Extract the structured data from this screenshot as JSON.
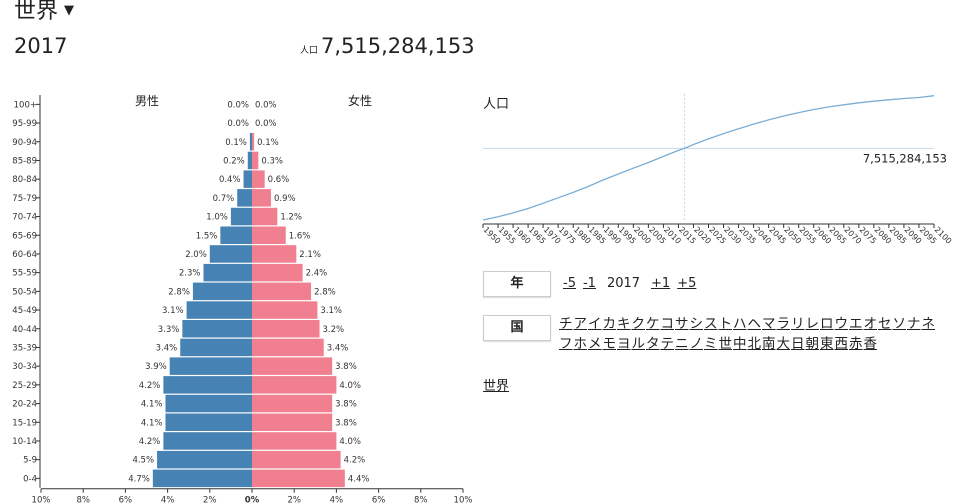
{
  "header": {
    "title": "世界",
    "year": "2017",
    "population_prefix": "人口",
    "population": "7,515,284,153"
  },
  "controls": {
    "year_label": "年",
    "country_label": "国",
    "steps": [
      "-5",
      "-1",
      "+1",
      "+5"
    ],
    "current_year": "2017",
    "world_link": "世界",
    "countries": [
      "チ",
      "ア",
      "イ",
      "カ",
      "キ",
      "ク",
      "ケ",
      "コ",
      "サ",
      "シ",
      "ス",
      "ト",
      "ハ",
      "ヘ",
      "マ",
      "ラ",
      "リ",
      "レ",
      "ロ",
      "ウ",
      "エ",
      "オ",
      "セ",
      "ソ",
      "ナ",
      "ネ",
      "フ",
      "ホ",
      "メ",
      "モ",
      "ヨ",
      "ル",
      "タ",
      "テ",
      "ニ",
      "ノ",
      "ミ",
      "世",
      "中",
      "北",
      "南",
      "大",
      "日",
      "朝",
      "東",
      "西",
      "赤",
      "香"
    ]
  },
  "colors": {
    "male": "#4682b4",
    "female": "#f08090",
    "line": "#7aaed6",
    "grid": "#c8d8e8"
  },
  "chart_data": [
    {
      "type": "bar",
      "orientation": "horizontal-diverging",
      "title": "",
      "left_label": "男性",
      "right_label": "女性",
      "categories": [
        "100+",
        "95-99",
        "90-94",
        "85-89",
        "80-84",
        "75-79",
        "70-74",
        "65-69",
        "60-64",
        "55-59",
        "50-54",
        "45-49",
        "40-44",
        "35-39",
        "30-34",
        "25-29",
        "20-24",
        "15-19",
        "10-14",
        "5-9",
        "0-4"
      ],
      "series": [
        {
          "name": "男性",
          "values": [
            0.0,
            0.0,
            0.1,
            0.2,
            0.4,
            0.7,
            1.0,
            1.5,
            2.0,
            2.3,
            2.8,
            3.1,
            3.3,
            3.4,
            3.9,
            4.2,
            4.1,
            4.1,
            4.2,
            4.5,
            4.7
          ]
        },
        {
          "name": "女性",
          "values": [
            0.0,
            0.0,
            0.1,
            0.3,
            0.6,
            0.9,
            1.2,
            1.6,
            2.1,
            2.4,
            2.8,
            3.1,
            3.2,
            3.4,
            3.8,
            4.0,
            3.8,
            3.8,
            4.0,
            4.2,
            4.4
          ]
        }
      ],
      "xlim": [
        -10,
        10
      ],
      "x_ticks": [
        "10%",
        "8%",
        "6%",
        "4%",
        "2%",
        "0%",
        "2%",
        "4%",
        "6%",
        "8%",
        "10%"
      ],
      "unit": "%"
    },
    {
      "type": "line",
      "title": "人口",
      "x": [
        1950,
        1955,
        1960,
        1965,
        1970,
        1975,
        1980,
        1985,
        1990,
        1995,
        2000,
        2005,
        2010,
        2015,
        2017,
        2020,
        2025,
        2030,
        2035,
        2040,
        2045,
        2050,
        2055,
        2060,
        2065,
        2070,
        2075,
        2080,
        2085,
        2090,
        2095,
        2100
      ],
      "y": [
        2.54,
        2.77,
        3.03,
        3.34,
        3.7,
        4.08,
        4.46,
        4.87,
        5.33,
        5.74,
        6.14,
        6.54,
        6.96,
        7.38,
        7.52,
        7.79,
        8.18,
        8.55,
        8.88,
        9.21,
        9.5,
        9.77,
        10.01,
        10.22,
        10.4,
        10.55,
        10.69,
        10.8,
        10.9,
        10.99,
        11.06,
        11.18
      ],
      "xlim": [
        1950,
        2100
      ],
      "x_ticks": [
        "1950",
        "1955",
        "1960",
        "1965",
        "1970",
        "1975",
        "1980",
        "1985",
        "1990",
        "1995",
        "2000",
        "2005",
        "2010",
        "2015",
        "2020",
        "2025",
        "2030",
        "2035",
        "2040",
        "2045",
        "2050",
        "2055",
        "2060",
        "2065",
        "2070",
        "2075",
        "2080",
        "2085",
        "2090",
        "2095",
        "2100"
      ],
      "current_x": 2017,
      "current_label": "7,515,284,153"
    }
  ]
}
